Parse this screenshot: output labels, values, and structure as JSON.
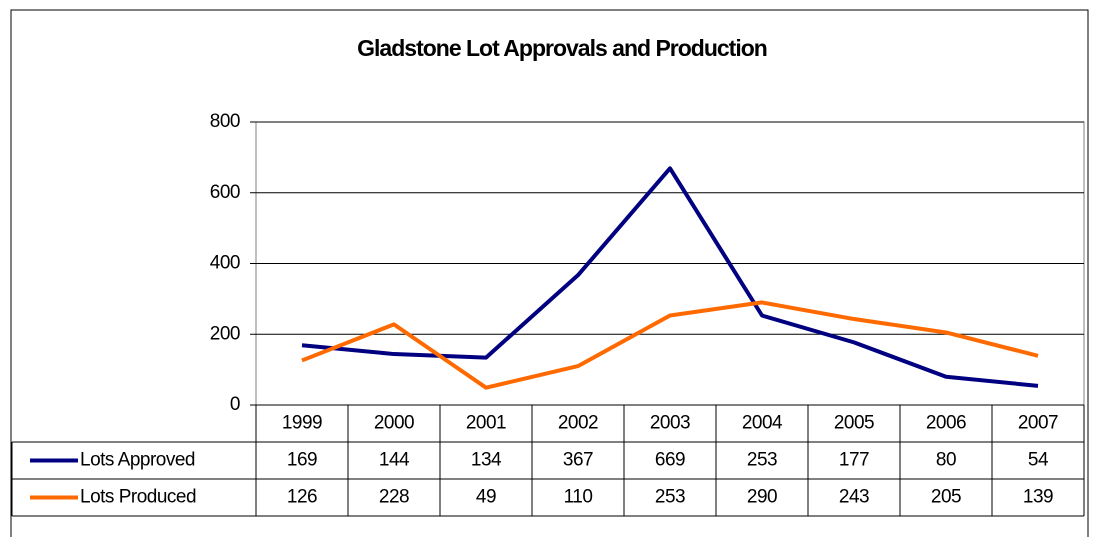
{
  "chart_data": {
    "type": "line",
    "title": "Gladstone Lot Approvals and Production",
    "categories": [
      "1999",
      "2000",
      "2001",
      "2002",
      "2003",
      "2004",
      "2005",
      "2006",
      "2007"
    ],
    "series": [
      {
        "name": "Lots Approved",
        "color": "#000080",
        "values": [
          169,
          144,
          134,
          367,
          669,
          253,
          177,
          80,
          54
        ]
      },
      {
        "name": "Lots Produced",
        "color": "#ff6a00",
        "values": [
          126,
          228,
          49,
          110,
          253,
          290,
          243,
          205,
          139
        ]
      }
    ],
    "ylim": [
      0,
      800
    ],
    "yticks": [
      0,
      200,
      400,
      600,
      800
    ],
    "grid": true,
    "data_table": true
  }
}
